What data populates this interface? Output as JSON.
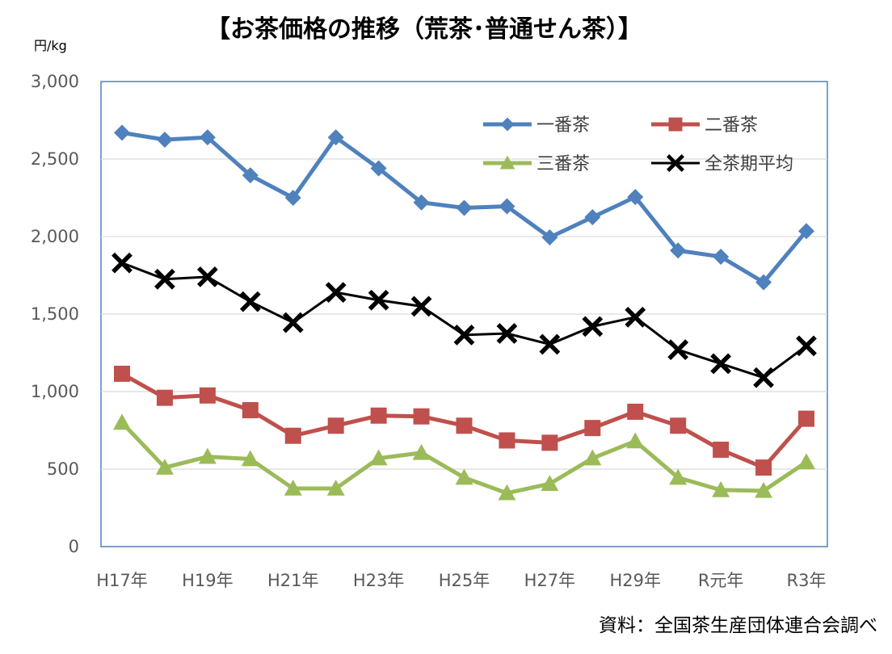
{
  "chart_data": {
    "type": "line",
    "title": "【お茶価格の推移（荒茶･普通せん茶）】",
    "ylabel": "円/kg",
    "source": "資料：全国茶生産団体連合会調べ",
    "ylim": [
      0,
      3000
    ],
    "yticks": [
      0,
      500,
      1000,
      1500,
      2000,
      2500,
      3000
    ],
    "ytick_labels": [
      "0",
      "500",
      "1,000",
      "1,500",
      "2,000",
      "2,500",
      "3,000"
    ],
    "categories": [
      "H17年",
      "H18年",
      "H19年",
      "H20年",
      "H21年",
      "H22年",
      "H23年",
      "H24年",
      "H25年",
      "H26年",
      "H27年",
      "H28年",
      "H29年",
      "H30年",
      "R元年",
      "R2年",
      "R3年"
    ],
    "xtick_labels": [
      "H17年",
      "H19年",
      "H21年",
      "H23年",
      "H25年",
      "H27年",
      "H29年",
      "R元年",
      "R3年"
    ],
    "xtick_indices": [
      0,
      2,
      4,
      6,
      8,
      10,
      12,
      14,
      16
    ],
    "grid": true,
    "legend_position": "top-right",
    "series": [
      {
        "name": "一番茶",
        "color": "#4f81bd",
        "marker": "diamond",
        "values": [
          2670,
          2625,
          2640,
          2395,
          2250,
          2640,
          2440,
          2220,
          2185,
          2195,
          1995,
          2125,
          2255,
          1910,
          1870,
          1705,
          2035
        ]
      },
      {
        "name": "二番茶",
        "color": "#c0504d",
        "marker": "square",
        "values": [
          1115,
          960,
          975,
          880,
          715,
          780,
          845,
          840,
          780,
          685,
          670,
          765,
          870,
          780,
          625,
          510,
          825
        ]
      },
      {
        "name": "三番茶",
        "color": "#9bbb59",
        "marker": "triangle",
        "values": [
          800,
          510,
          580,
          565,
          375,
          375,
          570,
          605,
          445,
          345,
          405,
          570,
          680,
          445,
          365,
          360,
          545
        ]
      },
      {
        "name": "全茶期平均",
        "color": "#000000",
        "marker": "x",
        "values": [
          1830,
          1725,
          1740,
          1580,
          1445,
          1640,
          1590,
          1550,
          1365,
          1375,
          1305,
          1420,
          1480,
          1270,
          1180,
          1090,
          1295
        ]
      }
    ]
  }
}
